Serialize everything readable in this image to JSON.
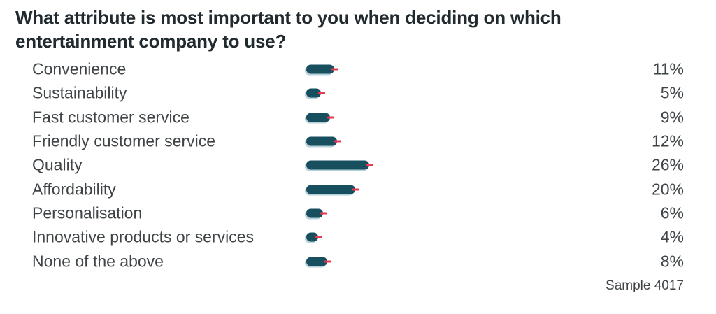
{
  "title": "What attribute is most important to you when deciding on which entertainment company to use?",
  "sample_label": "Sample 4017",
  "colors": {
    "background": "#ffffff",
    "bar": "#174f5f",
    "bar_shadow": "#b6d0da",
    "marker": "#e93a52",
    "title_text": "#212a2e",
    "label_text": "#3f4447"
  },
  "chart_data": {
    "type": "bar",
    "orientation": "horizontal",
    "title": "What attribute is most important to you when deciding on which entertainment company to use?",
    "categories": [
      "Convenience",
      "Sustainability",
      "Fast customer service",
      "Friendly customer service",
      "Quality",
      "Affordability",
      "Personalisation",
      "Innovative products or services",
      "None of the above"
    ],
    "values": [
      11,
      5,
      9,
      12,
      26,
      20,
      6,
      4,
      8
    ],
    "value_labels": [
      "11%",
      "5%",
      "9%",
      "12%",
      "26%",
      "20%",
      "6%",
      "4%",
      "8%"
    ],
    "xlabel": "",
    "ylabel": "",
    "xlim": [
      0,
      100
    ],
    "grid": false,
    "legend": false,
    "marker_meaning": "red dash at bar end",
    "annotations": [
      "Sample 4017"
    ]
  }
}
